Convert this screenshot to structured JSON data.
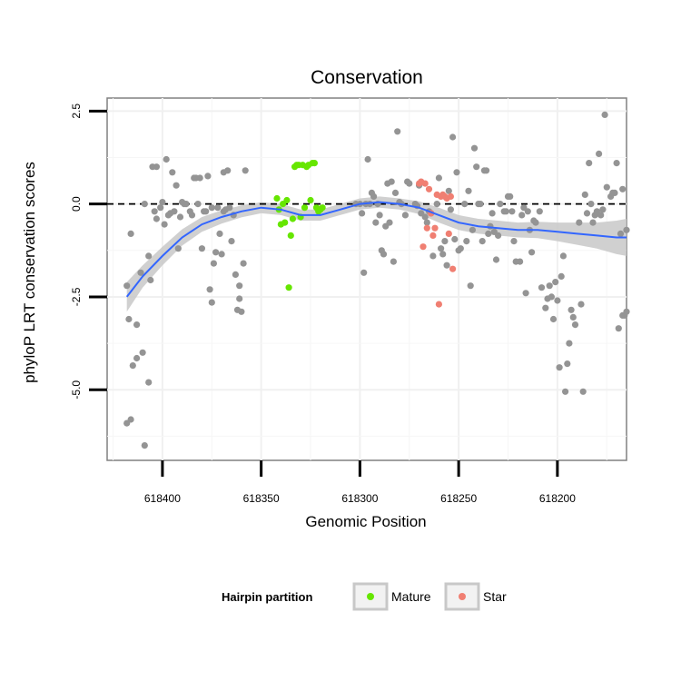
{
  "chart_data": {
    "type": "scatter",
    "title": "Conservation",
    "xlabel": "Genomic Position",
    "ylabel": "phyloP LRT conservation scores",
    "x_reversed": true,
    "xlim": [
      618428,
      618165
    ],
    "ylim": [
      -6.9,
      2.85
    ],
    "x_ticks": [
      618400,
      618350,
      618300,
      618250,
      618200
    ],
    "x_tick_labels": [
      "618400",
      "618350",
      "618300",
      "618250",
      "618200"
    ],
    "y_ticks": [
      2.5,
      0.0,
      -2.5,
      -5.0
    ],
    "y_tick_labels": [
      "2.5",
      "0.0",
      "-2.5",
      "-5.0"
    ],
    "reference_line": {
      "y": 0,
      "style": "dashed",
      "color": "#000000"
    },
    "grid": true,
    "legend": {
      "title": "Hairpin partition",
      "position": "bottom",
      "entries": [
        {
          "label": "Mature",
          "color": "#66e600"
        },
        {
          "label": "Star",
          "color": "#f07f72"
        }
      ]
    },
    "colors": {
      "other": "#949494",
      "mature": "#66e600",
      "star": "#f07f72",
      "smooth": "#3366ff",
      "ribbon": "#c8c8c8"
    },
    "series": [
      {
        "group": "other",
        "points": [
          [
            618418,
            -2.2
          ],
          [
            618417,
            -3.1
          ],
          [
            618418,
            -5.9
          ],
          [
            618416,
            -5.8
          ],
          [
            618416,
            -0.8
          ],
          [
            618415,
            -4.35
          ],
          [
            618413,
            -4.15
          ],
          [
            618413,
            -3.25
          ],
          [
            618411,
            -1.85
          ],
          [
            618410,
            -4.0
          ],
          [
            618409,
            -6.5
          ],
          [
            618409,
            0.0
          ],
          [
            618407,
            -4.8
          ],
          [
            618407,
            -1.4
          ],
          [
            618406,
            -2.05
          ],
          [
            618405,
            1.0
          ],
          [
            618404,
            -0.2
          ],
          [
            618403,
            -0.4
          ],
          [
            618403,
            1.0
          ],
          [
            618401,
            -0.1
          ],
          [
            618400,
            0.05
          ],
          [
            618399,
            -0.55
          ],
          [
            618398,
            1.2
          ],
          [
            618397,
            -0.3
          ],
          [
            618396,
            -0.25
          ],
          [
            618395,
            0.85
          ],
          [
            618394,
            -0.2
          ],
          [
            618393,
            0.5
          ],
          [
            618392,
            -1.2
          ],
          [
            618391,
            -0.35
          ],
          [
            618390,
            0.05
          ],
          [
            618389,
            0.0
          ],
          [
            618388,
            0.0
          ],
          [
            618386,
            -0.2
          ],
          [
            618385,
            -0.3
          ],
          [
            618384,
            0.7
          ],
          [
            618383,
            0.7
          ],
          [
            618382,
            0.0
          ],
          [
            618381,
            0.7
          ],
          [
            618380,
            -1.2
          ],
          [
            618379,
            -0.2
          ],
          [
            618378,
            -0.2
          ],
          [
            618377,
            0.75
          ],
          [
            618376,
            -2.3
          ],
          [
            618375,
            -2.65
          ],
          [
            618375,
            -0.1
          ],
          [
            618374,
            -1.6
          ],
          [
            618373,
            -1.3
          ],
          [
            618372,
            -0.1
          ],
          [
            618371,
            -0.8
          ],
          [
            618370,
            -1.35
          ],
          [
            618369,
            -0.2
          ],
          [
            618369,
            0.85
          ],
          [
            618368,
            -0.15
          ],
          [
            618367,
            0.9
          ],
          [
            618366,
            -0.1
          ],
          [
            618365,
            -1.0
          ],
          [
            618364,
            -0.3
          ],
          [
            618363,
            -1.9
          ],
          [
            618362,
            -2.85
          ],
          [
            618361,
            -2.55
          ],
          [
            618361,
            -2.2
          ],
          [
            618360,
            -2.9
          ],
          [
            618359,
            -1.6
          ],
          [
            618358,
            0.9
          ],
          [
            618302,
            0.0
          ],
          [
            618300,
            0.0
          ],
          [
            618299,
            -0.25
          ],
          [
            618298,
            -1.85
          ],
          [
            618297,
            0.0
          ],
          [
            618296,
            1.2
          ],
          [
            618295,
            0.0
          ],
          [
            618294,
            0.3
          ],
          [
            618293,
            0.2
          ],
          [
            618292,
            -0.5
          ],
          [
            618291,
            0.0
          ],
          [
            618290,
            -0.3
          ],
          [
            618289,
            -1.25
          ],
          [
            618288,
            -1.35
          ],
          [
            618287,
            -0.6
          ],
          [
            618286,
            0.55
          ],
          [
            618285,
            -0.5
          ],
          [
            618284,
            0.6
          ],
          [
            618283,
            -1.55
          ],
          [
            618282,
            0.3
          ],
          [
            618281,
            1.95
          ],
          [
            618280,
            0.05
          ],
          [
            618279,
            0.0
          ],
          [
            618277,
            -0.3
          ],
          [
            618276,
            0.6
          ],
          [
            618275,
            0.55
          ],
          [
            618272,
            0.0
          ],
          [
            618271,
            -0.05
          ],
          [
            618270,
            0.5
          ],
          [
            618269,
            -0.25
          ],
          [
            618267,
            -0.35
          ],
          [
            618266,
            -0.5
          ],
          [
            618265,
            -0.2
          ],
          [
            618264,
            -0.25
          ],
          [
            618263,
            -1.4
          ],
          [
            618261,
            0.0
          ],
          [
            618260,
            0.7
          ],
          [
            618259,
            -1.2
          ],
          [
            618258,
            -1.35
          ],
          [
            618257,
            -1.0
          ],
          [
            618256,
            -1.65
          ],
          [
            618255,
            0.35
          ],
          [
            618254,
            -0.15
          ],
          [
            618253,
            1.8
          ],
          [
            618252,
            -0.95
          ],
          [
            618251,
            0.85
          ],
          [
            618250,
            -1.25
          ],
          [
            618249,
            -1.2
          ],
          [
            618247,
            0.0
          ],
          [
            618246,
            -1.0
          ],
          [
            618245,
            0.35
          ],
          [
            618244,
            -2.2
          ],
          [
            618243,
            -0.7
          ],
          [
            618242,
            1.5
          ],
          [
            618241,
            1.0
          ],
          [
            618240,
            0.0
          ],
          [
            618239,
            0.0
          ],
          [
            618238,
            -1.0
          ],
          [
            618237,
            0.9
          ],
          [
            618236,
            0.9
          ],
          [
            618235,
            -0.8
          ],
          [
            618234,
            -0.6
          ],
          [
            618233,
            -0.25
          ],
          [
            618232,
            -0.75
          ],
          [
            618231,
            -1.5
          ],
          [
            618230,
            -0.85
          ],
          [
            618229,
            0.0
          ],
          [
            618227,
            -0.2
          ],
          [
            618226,
            -0.2
          ],
          [
            618225,
            0.2
          ],
          [
            618224,
            0.2
          ],
          [
            618223,
            -0.2
          ],
          [
            618222,
            -1.0
          ],
          [
            618221,
            -1.55
          ],
          [
            618219,
            -1.55
          ],
          [
            618218,
            -0.3
          ],
          [
            618217,
            -0.1
          ],
          [
            618216,
            -2.4
          ],
          [
            618215,
            -0.2
          ],
          [
            618214,
            -0.7
          ],
          [
            618213,
            -1.3
          ],
          [
            618212,
            -0.45
          ],
          [
            618211,
            -0.5
          ],
          [
            618209,
            -0.2
          ],
          [
            618208,
            -2.25
          ],
          [
            618206,
            -2.8
          ],
          [
            618205,
            -2.55
          ],
          [
            618204,
            -2.2
          ],
          [
            618203,
            -2.5
          ],
          [
            618202,
            -3.1
          ],
          [
            618201,
            -2.1
          ],
          [
            618200,
            -2.6
          ],
          [
            618199,
            -4.4
          ],
          [
            618198,
            -1.95
          ],
          [
            618197,
            -1.4
          ],
          [
            618196,
            -5.05
          ],
          [
            618195,
            -4.3
          ],
          [
            618194,
            -3.75
          ],
          [
            618193,
            -2.85
          ],
          [
            618192,
            -3.05
          ],
          [
            618191,
            -3.25
          ],
          [
            618189,
            -0.5
          ],
          [
            618188,
            -2.7
          ],
          [
            618187,
            -5.05
          ],
          [
            618186,
            0.25
          ],
          [
            618185,
            -0.25
          ],
          [
            618184,
            1.1
          ],
          [
            618183,
            0.0
          ],
          [
            618182,
            -0.5
          ],
          [
            618181,
            -0.3
          ],
          [
            618180,
            -0.2
          ],
          [
            618179,
            1.35
          ],
          [
            618178,
            -0.3
          ],
          [
            618177,
            -0.15
          ],
          [
            618176,
            2.4
          ],
          [
            618175,
            0.45
          ],
          [
            618173,
            0.2
          ],
          [
            618172,
            0.3
          ],
          [
            618171,
            0.3
          ],
          [
            618170,
            1.1
          ],
          [
            618169,
            -3.35
          ],
          [
            618168,
            -0.8
          ],
          [
            618167,
            0.4
          ],
          [
            618167,
            -3.0
          ],
          [
            618166,
            -3.0
          ],
          [
            618165,
            -0.7
          ],
          [
            618165,
            -2.9
          ]
        ]
      },
      {
        "group": "mature",
        "name": "Mature",
        "points": [
          [
            618342,
            0.15
          ],
          [
            618341,
            -0.15
          ],
          [
            618340,
            -0.55
          ],
          [
            618339,
            0.0
          ],
          [
            618338,
            -0.5
          ],
          [
            618337,
            0.1
          ],
          [
            618336,
            -2.25
          ],
          [
            618335,
            -0.85
          ],
          [
            618334,
            -0.4
          ],
          [
            618333,
            1.0
          ],
          [
            618332,
            1.05
          ],
          [
            618331,
            1.05
          ],
          [
            618330,
            -0.35
          ],
          [
            618329,
            1.05
          ],
          [
            618328,
            -0.1
          ],
          [
            618327,
            1.0
          ],
          [
            618326,
            1.05
          ],
          [
            618325,
            0.1
          ],
          [
            618324,
            1.1
          ],
          [
            618323,
            1.1
          ],
          [
            618322,
            -0.1
          ],
          [
            618321,
            -0.2
          ],
          [
            618320,
            -0.15
          ],
          [
            618319,
            -0.1
          ]
        ]
      },
      {
        "group": "star",
        "name": "Star",
        "points": [
          [
            618270,
            0.55
          ],
          [
            618269,
            0.6
          ],
          [
            618268,
            -1.15
          ],
          [
            618267,
            0.55
          ],
          [
            618266,
            -0.65
          ],
          [
            618265,
            0.4
          ],
          [
            618264,
            -0.25
          ],
          [
            618263,
            -0.85
          ],
          [
            618262,
            -0.65
          ],
          [
            618261,
            0.25
          ],
          [
            618260,
            -2.7
          ],
          [
            618259,
            0.2
          ],
          [
            618258,
            0.25
          ],
          [
            618257,
            0.2
          ],
          [
            618256,
            0.15
          ],
          [
            618255,
            -0.8
          ],
          [
            618254,
            0.2
          ],
          [
            618253,
            -1.75
          ]
        ]
      }
    ],
    "smooth": {
      "points": [
        [
          618418,
          -2.5
        ],
        [
          618410,
          -1.95
        ],
        [
          618400,
          -1.4
        ],
        [
          618390,
          -0.9
        ],
        [
          618380,
          -0.55
        ],
        [
          618370,
          -0.35
        ],
        [
          618360,
          -0.2
        ],
        [
          618350,
          -0.1
        ],
        [
          618340,
          -0.15
        ],
        [
          618330,
          -0.3
        ],
        [
          618320,
          -0.3
        ],
        [
          618310,
          -0.15
        ],
        [
          618300,
          0.0
        ],
        [
          618290,
          0.05
        ],
        [
          618280,
          0.0
        ],
        [
          618270,
          -0.1
        ],
        [
          618260,
          -0.3
        ],
        [
          618250,
          -0.5
        ],
        [
          618240,
          -0.6
        ],
        [
          618230,
          -0.65
        ],
        [
          618220,
          -0.7
        ],
        [
          618210,
          -0.7
        ],
        [
          618200,
          -0.75
        ],
        [
          618190,
          -0.8
        ],
        [
          618180,
          -0.85
        ],
        [
          618170,
          -0.9
        ],
        [
          618165,
          -0.9
        ]
      ],
      "ribbon_halfwidth": [
        0.4,
        0.3,
        0.25,
        0.22,
        0.2,
        0.18,
        0.16,
        0.15,
        0.15,
        0.15,
        0.15,
        0.15,
        0.15,
        0.15,
        0.15,
        0.17,
        0.2,
        0.2,
        0.2,
        0.2,
        0.2,
        0.22,
        0.25,
        0.3,
        0.35,
        0.45,
        0.5
      ]
    }
  }
}
